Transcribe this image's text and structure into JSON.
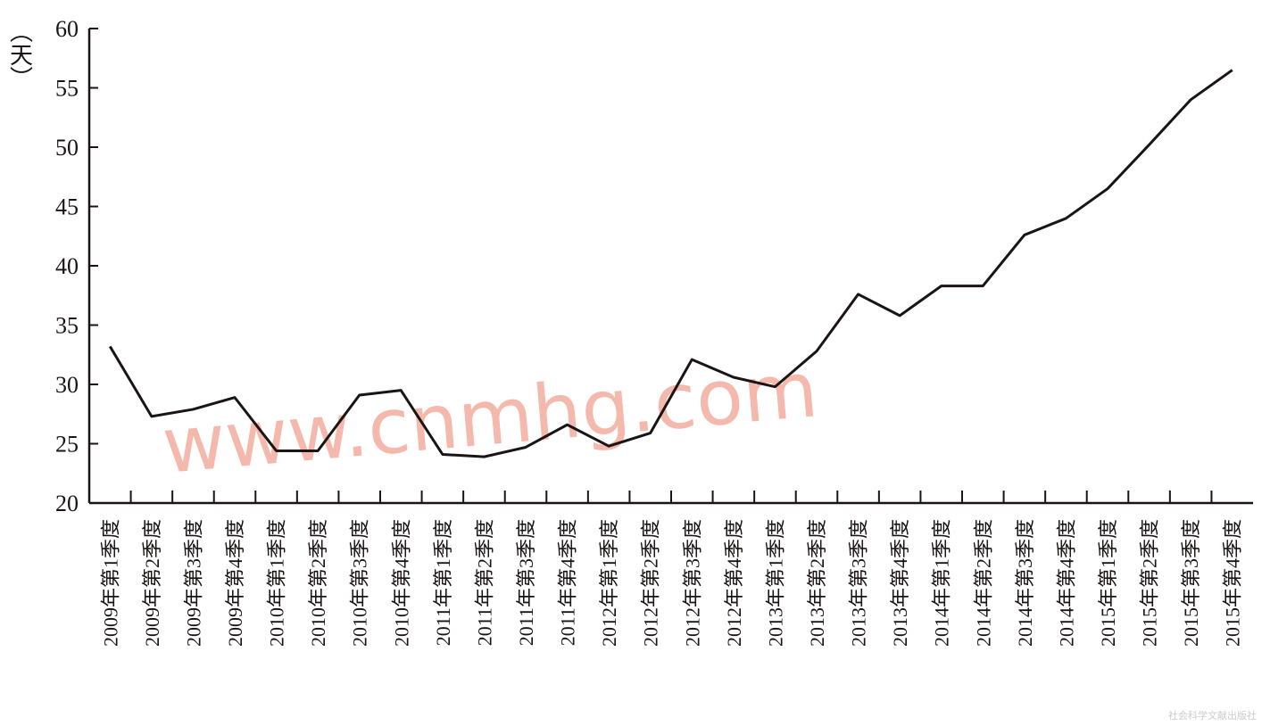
{
  "chart_data": {
    "type": "line",
    "y_label": "（天）",
    "watermark": "www.cnmhg.com",
    "source": "社会科学文献出版社",
    "categories": [
      "2009年第1季度",
      "2009年第2季度",
      "2009年第3季度",
      "2009年第4季度",
      "2010年第1季度",
      "2010年第2季度",
      "2010年第3季度",
      "2010年第4季度",
      "2011年第1季度",
      "2011年第2季度",
      "2011年第3季度",
      "2011年第4季度",
      "2012年第1季度",
      "2012年第2季度",
      "2012年第3季度",
      "2012年第4季度",
      "2013年第1季度",
      "2013年第2季度",
      "2013年第3季度",
      "2013年第4季度",
      "2014年第1季度",
      "2014年第2季度",
      "2014年第3季度",
      "2014年第4季度",
      "2015年第1季度",
      "2015年第2季度",
      "2015年第3季度",
      "2015年第4季度"
    ],
    "values": [
      33.2,
      27.3,
      27.9,
      28.9,
      24.4,
      24.4,
      29.1,
      29.5,
      24.1,
      23.9,
      24.7,
      26.6,
      24.8,
      25.9,
      32.1,
      30.6,
      29.8,
      32.8,
      37.6,
      35.8,
      38.3,
      38.3,
      42.6,
      44.0,
      46.5,
      50.2,
      54.0,
      56.5
    ],
    "color": "#1a1414",
    "ylim": [
      20,
      60
    ],
    "yticks": [
      20,
      25,
      30,
      35,
      40,
      45,
      50,
      55,
      60
    ]
  }
}
